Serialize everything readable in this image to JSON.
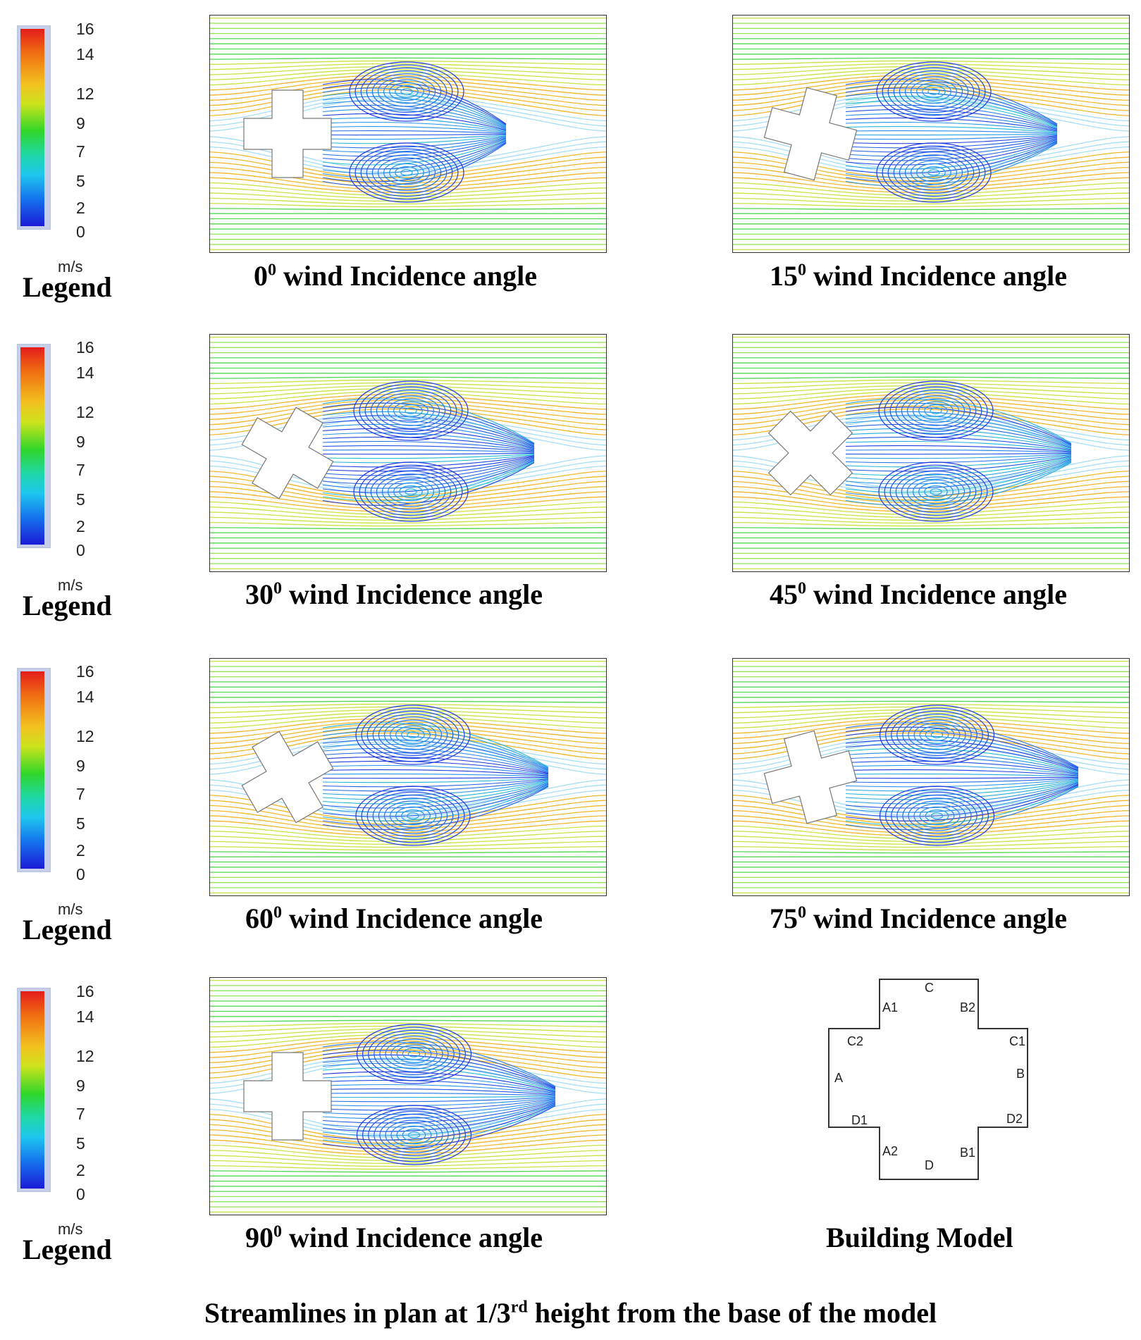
{
  "legend": {
    "ticks": [
      "16",
      "14",
      "12",
      "9",
      "7",
      "5",
      "2",
      "0"
    ],
    "unit": "m/s",
    "title": "Legend",
    "colors": [
      "#e41b1b",
      "#f06d12",
      "#f3c11f",
      "#2fd62a",
      "#1ec6ee",
      "#1574ee",
      "#1b1bd6"
    ]
  },
  "panels": [
    {
      "angle": "0",
      "suffix": "wind Incidence angle",
      "sup": "0"
    },
    {
      "angle": "15",
      "suffix": "wind Incidence angle",
      "sup": "0"
    },
    {
      "angle": "30",
      "suffix": "wind Incidence angle",
      "sup": "0"
    },
    {
      "angle": "45",
      "suffix": "wind Incidence angle",
      "sup": "0"
    },
    {
      "angle": "60",
      "suffix": "wind Incidence angle",
      "sup": "0"
    },
    {
      "angle": "75",
      "suffix": "wind Incidence angle",
      "sup": "0"
    },
    {
      "angle": "90",
      "suffix": "wind Incidence angle",
      "sup": "0"
    }
  ],
  "building_model": {
    "title": "Building Model",
    "labels": [
      "C",
      "A1",
      "B2",
      "C2",
      "C1",
      "A",
      "B",
      "D1",
      "D2",
      "A2",
      "D",
      "B1"
    ]
  },
  "footer": {
    "prefix": "Streamlines in plan at 1/3",
    "sup": "rd",
    "suffix": " height from the base of the model"
  }
}
